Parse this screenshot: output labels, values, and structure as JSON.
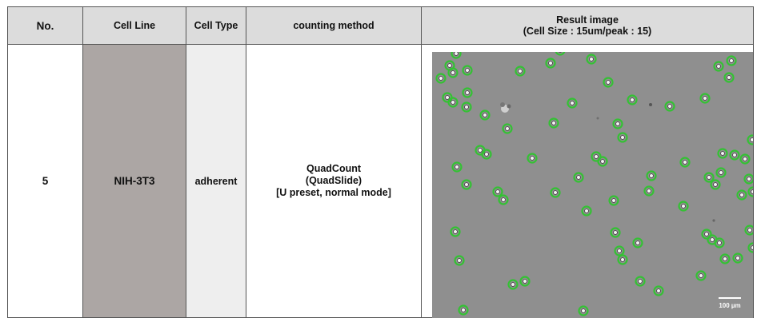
{
  "headers": {
    "no": "No.",
    "cell_line": "Cell Line",
    "cell_type": "Cell Type",
    "counting_method": "counting method",
    "result_line1": "Result image",
    "result_line2": "(Cell Size : 15um/peak : 15)"
  },
  "row": {
    "no": "5",
    "cell_line": "NIH-3T3",
    "cell_type": "adherent",
    "method_line1": "QuadCount",
    "method_line2": "(QuadSlide)",
    "method_line3": "[U preset, normal mode]"
  },
  "image": {
    "scale_bar_label": "100 µm",
    "background_color": "#8f8f8f",
    "ring_color": "#34c134"
  }
}
